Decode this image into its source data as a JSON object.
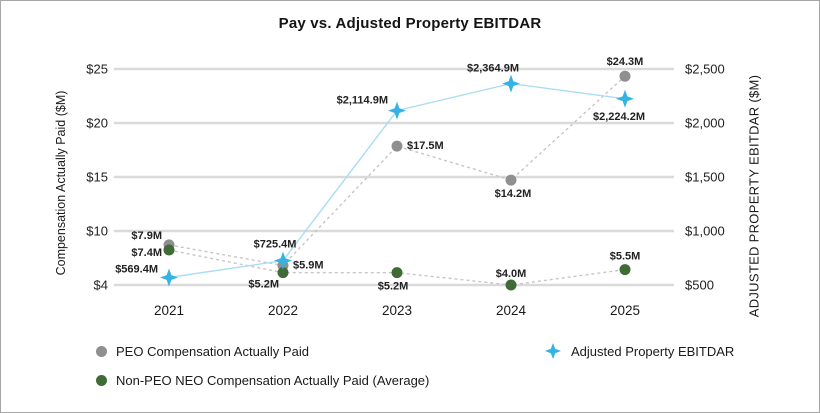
{
  "chart_data": {
    "type": "line",
    "title": "Pay vs. Adjusted Property EBITDAR",
    "categories": [
      "2021",
      "2022",
      "2023",
      "2024",
      "2025"
    ],
    "gridline_color": "#dadada",
    "left_axis": {
      "title": "Compensation Actually Paid ($M)",
      "ticks": [
        "$25",
        "$20",
        "$15",
        "$10",
        "$4"
      ],
      "min": 4,
      "max": 25
    },
    "right_axis": {
      "title": "ADJUSTED PROPERTY EBITDAR ($M)",
      "ticks": [
        "$2,500",
        "$2,000",
        "$1,500",
        "$1,000",
        "$500"
      ],
      "min": 500,
      "max": 2500
    },
    "series": [
      {
        "name": "PEO Compensation Actually Paid",
        "axis": "left",
        "marker": "circle",
        "color": "#8f8f8f",
        "line_color": "#c6c6c6",
        "line_dash": "3 3",
        "points": [
          {
            "x": "2021",
            "y": 7.9,
            "label": "$7.9M",
            "anchor": "end",
            "dx": -7,
            "dy": -6
          },
          {
            "x": "2022",
            "y": 5.9,
            "label": "$5.9M",
            "anchor": "start",
            "dx": 10,
            "dy": 3
          },
          {
            "x": "2023",
            "y": 17.5,
            "label": "$17.5M",
            "anchor": "start",
            "dx": 10,
            "dy": 3
          },
          {
            "x": "2024",
            "y": 14.2,
            "label": "$14.2M",
            "anchor": "middle",
            "dx": 2,
            "dy": 17
          },
          {
            "x": "2025",
            "y": 24.3,
            "label": "$24.3M",
            "anchor": "middle",
            "dx": 0,
            "dy": -11
          }
        ]
      },
      {
        "name": "Non-PEO NEO Compensation Actually Paid (Average)",
        "axis": "left",
        "marker": "circle",
        "color": "#3f6b36",
        "line_color": "#c6c6c6",
        "line_dash": "3 3",
        "points": [
          {
            "x": "2021",
            "y": 7.4,
            "label": "$7.4M",
            "anchor": "end",
            "dx": -7,
            "dy": 6
          },
          {
            "x": "2022",
            "y": 5.2,
            "label": "$5.2M",
            "anchor": "end",
            "dx": -4,
            "dy": 15
          },
          {
            "x": "2023",
            "y": 5.2,
            "label": "$5.2M",
            "anchor": "middle",
            "dx": -4,
            "dy": 17
          },
          {
            "x": "2024",
            "y": 4.0,
            "label": "$4.0M",
            "anchor": "middle",
            "dx": 0,
            "dy": -8
          },
          {
            "x": "2025",
            "y": 5.5,
            "label": "$5.5M",
            "anchor": "middle",
            "dx": 0,
            "dy": -10
          }
        ]
      },
      {
        "name": "Adjusted Property EBITDAR",
        "axis": "right",
        "marker": "star",
        "color": "#35b4e4",
        "line_color": "#a9ddf3",
        "line_dash": "",
        "points": [
          {
            "x": "2021",
            "y": 569.4,
            "label": "$569.4M",
            "anchor": "end",
            "dx": -11,
            "dy": -5
          },
          {
            "x": "2022",
            "y": 725.4,
            "label": "$725.4M",
            "anchor": "middle",
            "dx": -8,
            "dy": -13
          },
          {
            "x": "2023",
            "y": 2114.9,
            "label": "$2,114.9M",
            "anchor": "end",
            "dx": -9,
            "dy": -7
          },
          {
            "x": "2024",
            "y": 2364.9,
            "label": "$2,364.9M",
            "anchor": "middle",
            "dx": -18,
            "dy": -12
          },
          {
            "x": "2025",
            "y": 2224.2,
            "label": "$2,224.2M",
            "anchor": "middle",
            "dx": -6,
            "dy": 21
          }
        ]
      }
    ]
  }
}
